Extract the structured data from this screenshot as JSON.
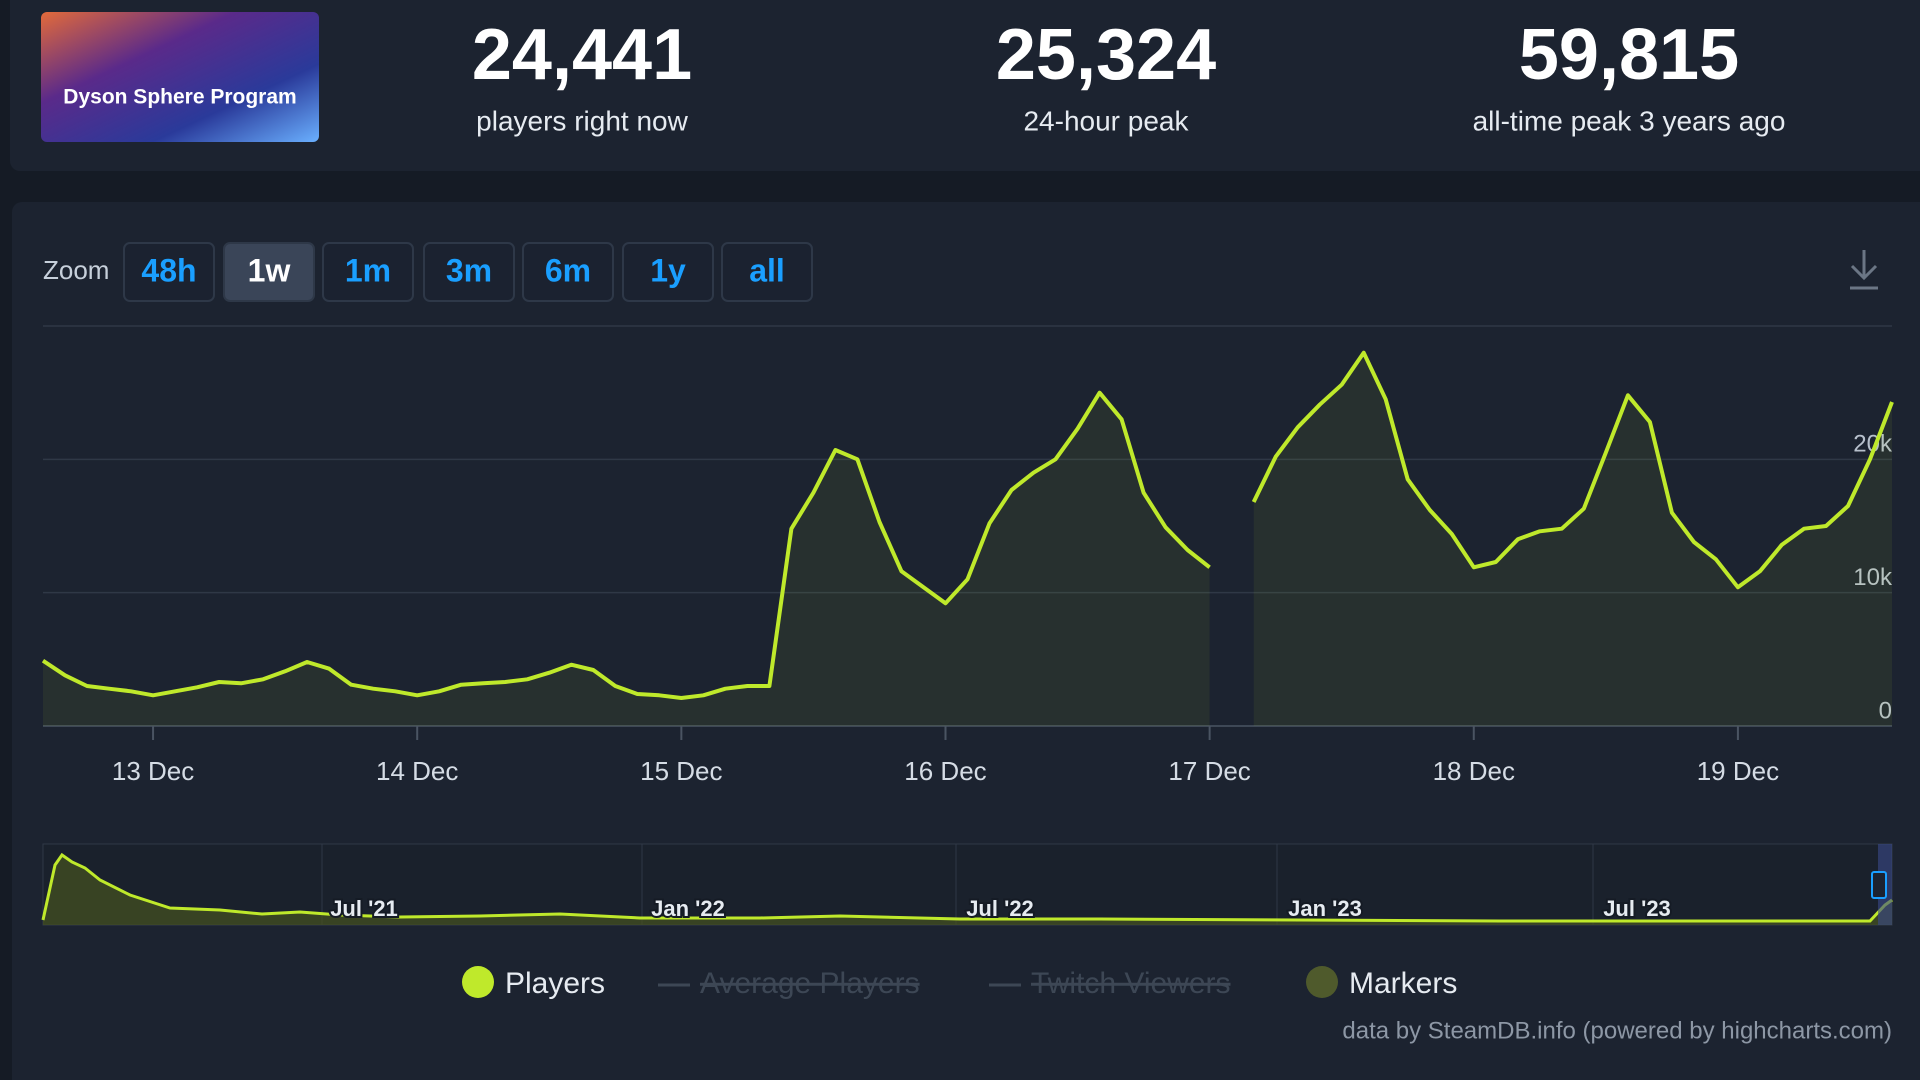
{
  "header": {
    "game_title": "Dyson Sphere Program",
    "stats": [
      {
        "value": "24,441",
        "label": "players right now"
      },
      {
        "value": "25,324",
        "label": "24-hour peak"
      },
      {
        "value": "59,815",
        "label": "all-time peak 3 years ago"
      }
    ]
  },
  "zoom": {
    "label": "Zoom",
    "buttons": [
      "48h",
      "1w",
      "1m",
      "3m",
      "6m",
      "1y",
      "all"
    ],
    "active": "1w"
  },
  "chart_data": {
    "type": "line",
    "categories": [
      null,
      null,
      null,
      null,
      null,
      "13 Dec",
      null,
      null,
      null,
      null,
      null,
      null,
      null,
      null,
      null,
      null,
      null,
      "14 Dec",
      null,
      null,
      null,
      null,
      null,
      null,
      null,
      null,
      null,
      null,
      null,
      "15 Dec",
      null,
      null,
      null,
      null,
      null,
      null,
      null,
      null,
      null,
      null,
      null,
      "16 Dec",
      null,
      null,
      null,
      null,
      null,
      null,
      null,
      null,
      null,
      null,
      null,
      "17 Dec",
      null,
      null,
      null,
      null,
      null,
      null,
      null,
      null,
      null,
      null,
      null,
      "18 Dec",
      null,
      null,
      null,
      null,
      null,
      null,
      null,
      null,
      null,
      null,
      null,
      "19 Dec",
      null,
      null,
      null,
      null,
      null,
      null,
      null
    ],
    "series": [
      {
        "name": "Players",
        "color": "#bfe92b",
        "values": [
          4900,
          3800,
          3000,
          2800,
          2600,
          2300,
          2600,
          2900,
          3300,
          3200,
          3500,
          4100,
          4800,
          4300,
          3100,
          2800,
          2600,
          2300,
          2600,
          3100,
          3200,
          3300,
          3500,
          4000,
          4600,
          4200,
          3000,
          2400,
          2300,
          2100,
          2300,
          2800,
          3000,
          3000,
          14800,
          17500,
          20700,
          20000,
          15300,
          11600,
          10400,
          9200,
          11000,
          15200,
          17700,
          19000,
          20000,
          22300,
          25000,
          23000,
          17500,
          14900,
          13200,
          11900,
          null,
          16800,
          20200,
          22400,
          24100,
          25600,
          28000,
          24500,
          18500,
          16200,
          14400,
          11900,
          12300,
          14000,
          14600,
          14800,
          16300,
          20500,
          24800,
          22800,
          16000,
          13800,
          12500,
          10400,
          11600,
          13600,
          14800,
          15000,
          16500,
          20000,
          24300
        ]
      }
    ],
    "ylim": [
      0,
      30000
    ],
    "yticks": [
      0,
      {
        "value": 10000,
        "label": "10k"
      },
      {
        "value": 20000,
        "label": "20k"
      }
    ],
    "grid": true
  },
  "legend": [
    {
      "name": "Average Players",
      "hidden": true
    },
    {
      "name": "Twitch Viewers",
      "hidden": true
    },
    {
      "name": "Markers",
      "color": "#4f5a2c"
    }
  ],
  "navigator": {
    "labels": [
      "Jul '21",
      "Jan '22",
      "Jul '22",
      "Jan '23",
      "Jul '23"
    ]
  },
  "credit": "data by SteamDB.info (powered by highcharts.com)"
}
